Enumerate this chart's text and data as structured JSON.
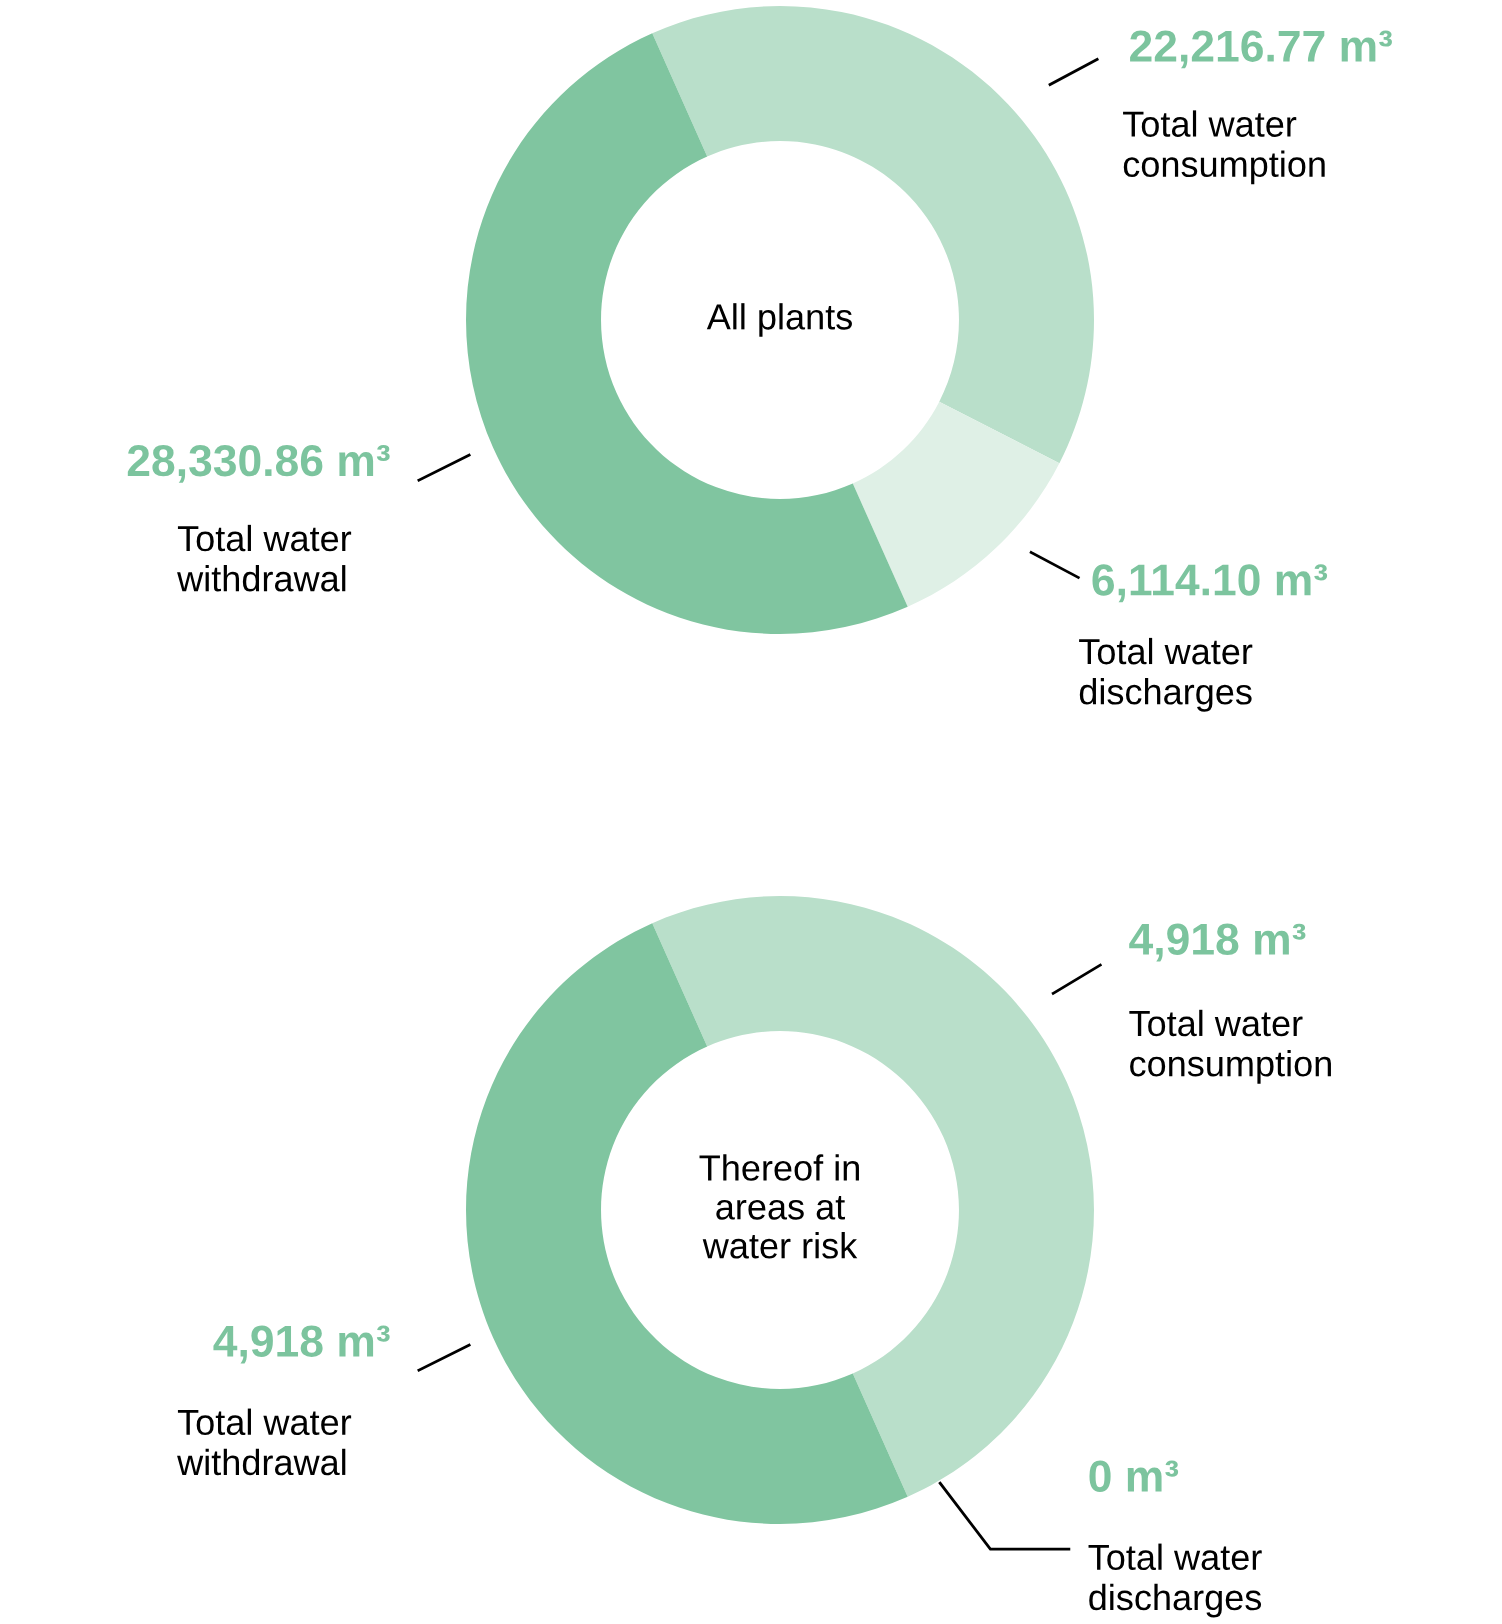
{
  "chart_data": [
    {
      "type": "donut",
      "title": "All plants",
      "categories": [
        "Total water\nconsumption",
        "Total water\ndischarges",
        "Total water\nwithdrawal"
      ],
      "values": [
        22216.77,
        6114.1,
        28330.86
      ],
      "colors": [
        "#b9dfca",
        "#dff0e6",
        "#80c5a0"
      ],
      "value_labels": [
        "22,216.77 m³",
        "6,114.10 m³",
        "28,330.86 m³"
      ]
    },
    {
      "type": "donut",
      "title": "Thereof in\nareas at\nwater risk",
      "categories": [
        "Total water\nconsumption",
        "Total water\ndischarges",
        "Total water\nwithdrawal"
      ],
      "values": [
        4918,
        0,
        4918
      ],
      "colors": [
        "#b9dfca",
        "#dff0e6",
        "#80c5a0"
      ],
      "value_labels": [
        "4,918 m³",
        "0 m³",
        "4,918 m³"
      ]
    }
  ]
}
